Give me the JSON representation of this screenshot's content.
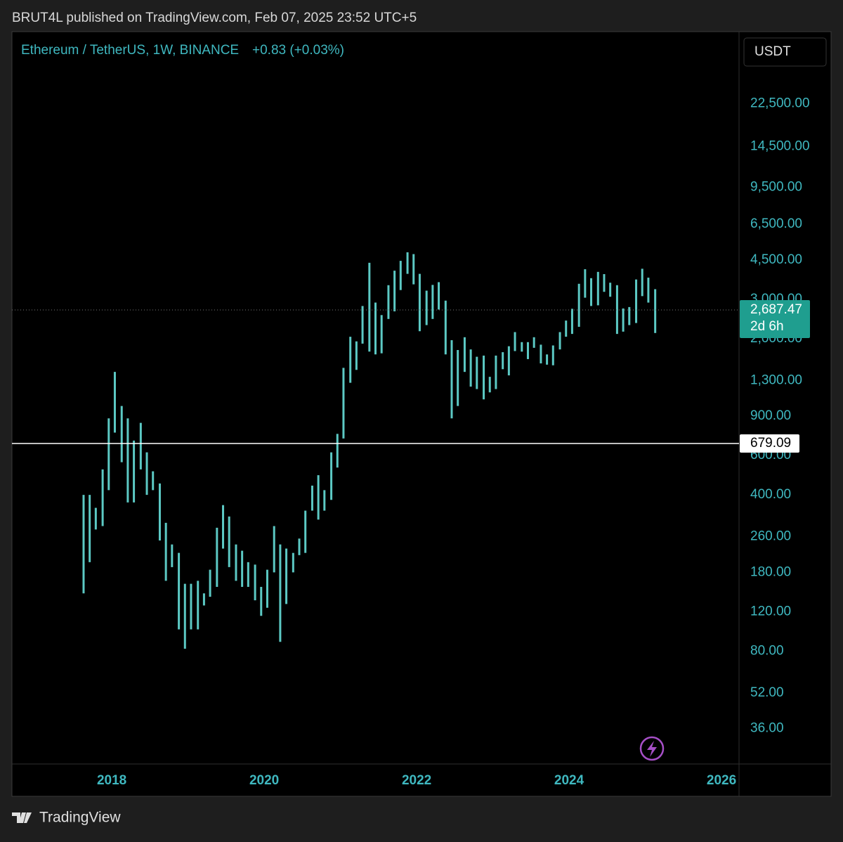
{
  "header": "BRUT4L published on TradingView.com, Feb 07, 2025 23:52 UTC+5",
  "footer": "TradingView",
  "chart_data": {
    "type": "highlow",
    "symbol": "Ethereum / TetherUS, 1W, BINANCE",
    "change": "+0.83 (+0.03%)",
    "currency": "USDT",
    "log_scale": true,
    "grid": false,
    "color": "#5cc9c4",
    "xlim": [
      2016.69,
      2026.23
    ],
    "xticks": [
      2018,
      2020,
      2022,
      2024,
      2026
    ],
    "ylim": [
      25,
      47300
    ],
    "yticks": [
      36,
      52,
      80,
      120,
      180,
      260,
      400,
      600,
      900,
      {
        "value": 1300,
        "label": "1,300.00"
      },
      {
        "value": 2000,
        "label": "2,000.00"
      },
      {
        "value": 3000,
        "label": "3,000.00"
      },
      {
        "value": 4500,
        "label": "4,500.00"
      },
      {
        "value": 6500,
        "label": "6,500.00"
      },
      {
        "value": 9500,
        "label": "9,500.00"
      },
      {
        "value": 14500,
        "label": "14,500.00"
      },
      {
        "value": 22500,
        "label": "22,500.00"
      }
    ],
    "ytick_labels": [
      "36.00",
      "52.00",
      "80.00",
      "120.00",
      "180.00",
      "260.00",
      "400.00",
      "600.00",
      "900.00"
    ],
    "last_price": {
      "value": 2687.47,
      "label": "2,687.47"
    },
    "countdown": "2d 6h",
    "horizontal_line": 679.09,
    "x": [
      2017.63,
      2017.71,
      2017.79,
      2017.88,
      2017.96,
      2018.04,
      2018.13,
      2018.21,
      2018.29,
      2018.38,
      2018.46,
      2018.54,
      2018.63,
      2018.71,
      2018.79,
      2018.88,
      2018.96,
      2019.04,
      2019.13,
      2019.21,
      2019.29,
      2019.38,
      2019.46,
      2019.54,
      2019.63,
      2019.71,
      2019.79,
      2019.88,
      2019.96,
      2020.04,
      2020.13,
      2020.21,
      2020.29,
      2020.38,
      2020.46,
      2020.54,
      2020.63,
      2020.71,
      2020.79,
      2020.88,
      2020.96,
      2021.04,
      2021.13,
      2021.21,
      2021.29,
      2021.38,
      2021.46,
      2021.54,
      2021.63,
      2021.71,
      2021.79,
      2021.88,
      2021.96,
      2022.04,
      2022.13,
      2022.21,
      2022.29,
      2022.38,
      2022.46,
      2022.54,
      2022.63,
      2022.71,
      2022.79,
      2022.88,
      2022.96,
      2023.04,
      2023.13,
      2023.21,
      2023.29,
      2023.38,
      2023.46,
      2023.54,
      2023.63,
      2023.71,
      2023.79,
      2023.88,
      2023.96,
      2024.04,
      2024.13,
      2024.21,
      2024.29,
      2024.38,
      2024.46,
      2024.54,
      2024.63,
      2024.71,
      2024.79,
      2024.88,
      2024.96,
      2025.04,
      2025.13
    ],
    "high": [
      400,
      400,
      350,
      520,
      880,
      1420,
      1000,
      880,
      700,
      840,
      620,
      510,
      450,
      300,
      240,
      220,
      160,
      160,
      165,
      145,
      185,
      285,
      360,
      320,
      240,
      225,
      200,
      195,
      155,
      185,
      290,
      240,
      230,
      220,
      255,
      340,
      440,
      490,
      420,
      620,
      750,
      1480,
      2040,
      1945,
      2800,
      4370,
      2900,
      2550,
      3470,
      4030,
      4460,
      4870,
      4780,
      3900,
      3280,
      3480,
      3580,
      2960,
      1970,
      1780,
      2030,
      1790,
      1660,
      1680,
      1350,
      1680,
      1740,
      1850,
      2140,
      1930,
      1930,
      2030,
      1880,
      1700,
      1865,
      2140,
      2410,
      2720,
      3520,
      4090,
      3730,
      3980,
      3890,
      3560,
      3470,
      2730,
      2770,
      3680,
      4110,
      3750,
      3330
    ],
    "low": [
      145,
      200,
      280,
      290,
      420,
      760,
      560,
      370,
      370,
      520,
      400,
      420,
      250,
      165,
      190,
      100,
      82,
      100,
      100,
      128,
      140,
      155,
      230,
      190,
      165,
      155,
      155,
      135,
      115,
      125,
      180,
      88,
      130,
      180,
      215,
      220,
      340,
      310,
      340,
      380,
      530,
      715,
      1270,
      1450,
      1900,
      1750,
      1700,
      1720,
      2450,
      2650,
      3300,
      3900,
      3500,
      2160,
      2300,
      2450,
      2700,
      1700,
      880,
      1000,
      1420,
      1220,
      1190,
      1070,
      1150,
      1190,
      1460,
      1370,
      1760,
      1750,
      1620,
      1820,
      1550,
      1530,
      1520,
      1790,
      2040,
      2100,
      2260,
      3050,
      2800,
      2820,
      3240,
      3080,
      2100,
      2150,
      2300,
      2350,
      3100,
      2900,
      2120
    ]
  }
}
